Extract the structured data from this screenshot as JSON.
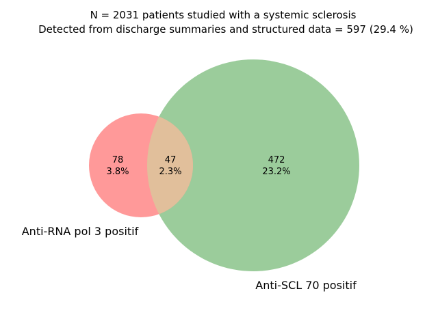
{
  "title": {
    "line1": "N = 2031 patients studied with a systemic sclerosis",
    "line2": "Detected from discharge summaries and structured data = 597 (29.4 %)"
  },
  "sets": {
    "a": {
      "label": "Anti-RNA pol 3 positif",
      "color": "#ff9999"
    },
    "b": {
      "label": "Anti-SCL 70 positif",
      "color": "#9bcc9b"
    },
    "overlap_color": "#e1bf9b"
  },
  "regions": {
    "a_only": {
      "count": "78",
      "percent": "3.8%"
    },
    "both": {
      "count": "47",
      "percent": "2.3%"
    },
    "b_only": {
      "count": "472",
      "percent": "23.2%"
    }
  }
}
